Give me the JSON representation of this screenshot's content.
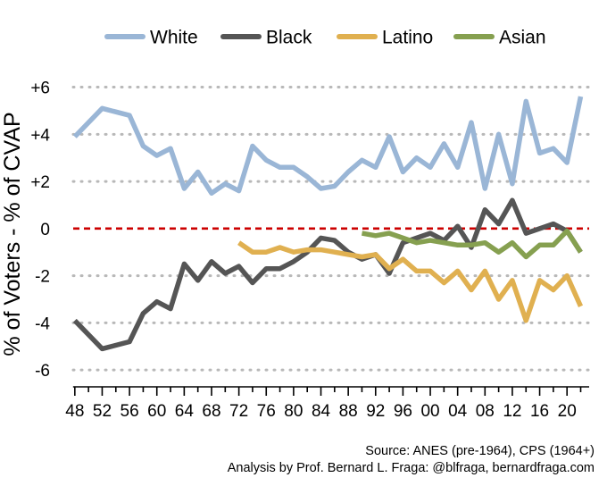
{
  "chart_data": {
    "type": "line",
    "ylabel": "% of Voters - % of CVAP",
    "ylim": [
      -6.6,
      6.4
    ],
    "yticks": [
      6,
      4,
      2,
      0,
      -2,
      -4,
      -6
    ],
    "ytick_labels": [
      "+6",
      "+4",
      "+2",
      "0",
      "-2",
      "-4",
      "-6"
    ],
    "xlim": [
      1947.5,
      2023.5
    ],
    "xticks": [
      1948,
      1952,
      1956,
      1960,
      1964,
      1968,
      1972,
      1976,
      1980,
      1984,
      1988,
      1992,
      1996,
      2000,
      2004,
      2008,
      2012,
      2016,
      2020
    ],
    "xtick_labels": [
      "48",
      "52",
      "56",
      "60",
      "64",
      "68",
      "72",
      "76",
      "80",
      "84",
      "88",
      "92",
      "96",
      "00",
      "04",
      "08",
      "12",
      "16",
      "20"
    ],
    "grid": "horizontal dotted",
    "reference_line": {
      "y": 0,
      "color": "#cc0000",
      "style": "dashed"
    },
    "legend_position": "top",
    "series": [
      {
        "name": "White",
        "color": "#9ab6d6",
        "x": [
          1948,
          1952,
          1956,
          1958,
          1960,
          1962,
          1964,
          1966,
          1968,
          1970,
          1972,
          1974,
          1976,
          1978,
          1980,
          1982,
          1984,
          1986,
          1988,
          1990,
          1992,
          1994,
          1996,
          1998,
          2000,
          2002,
          2004,
          2006,
          2008,
          2010,
          2012,
          2014,
          2016,
          2018,
          2020,
          2022
        ],
        "y": [
          3.9,
          5.1,
          4.8,
          3.5,
          3.1,
          3.4,
          1.7,
          2.4,
          1.5,
          1.9,
          1.6,
          3.5,
          2.9,
          2.6,
          2.6,
          2.2,
          1.7,
          1.8,
          2.4,
          2.9,
          2.6,
          3.9,
          2.4,
          3.0,
          2.6,
          3.6,
          2.6,
          4.5,
          1.7,
          4.0,
          1.9,
          5.4,
          3.2,
          3.4,
          2.8,
          5.6
        ]
      },
      {
        "name": "Black",
        "color": "#555555",
        "x": [
          1948,
          1952,
          1956,
          1958,
          1960,
          1962,
          1964,
          1966,
          1968,
          1970,
          1972,
          1974,
          1976,
          1978,
          1980,
          1982,
          1984,
          1986,
          1988,
          1990,
          1992,
          1994,
          1996,
          1998,
          2000,
          2002,
          2004,
          2006,
          2008,
          2010,
          2012,
          2014,
          2016,
          2018,
          2020,
          2022
        ],
        "y": [
          -3.9,
          -5.1,
          -4.8,
          -3.6,
          -3.1,
          -3.4,
          -1.5,
          -2.2,
          -1.4,
          -1.9,
          -1.6,
          -2.3,
          -1.7,
          -1.7,
          -1.4,
          -1.0,
          -0.4,
          -0.5,
          -1.0,
          -1.3,
          -1.1,
          -1.9,
          -0.6,
          -0.4,
          -0.2,
          -0.5,
          0.1,
          -0.8,
          0.8,
          0.2,
          1.2,
          -0.2,
          0.0,
          0.2,
          -0.1,
          -1.0
        ]
      },
      {
        "name": "Latino",
        "color": "#e0b050",
        "x": [
          1972,
          1974,
          1976,
          1978,
          1980,
          1982,
          1984,
          1986,
          1988,
          1990,
          1992,
          1994,
          1996,
          1998,
          2000,
          2002,
          2004,
          2006,
          2008,
          2010,
          2012,
          2014,
          2016,
          2018,
          2020,
          2022
        ],
        "y": [
          -0.6,
          -1.0,
          -1.0,
          -0.8,
          -1.0,
          -0.9,
          -0.9,
          -1.0,
          -1.1,
          -1.2,
          -1.1,
          -1.7,
          -1.3,
          -1.8,
          -1.8,
          -2.3,
          -1.8,
          -2.6,
          -1.8,
          -3.0,
          -2.2,
          -3.9,
          -2.2,
          -2.6,
          -2.0,
          -3.3
        ]
      },
      {
        "name": "Asian",
        "color": "#86a050",
        "x": [
          1990,
          1992,
          1994,
          1996,
          1998,
          2000,
          2002,
          2004,
          2006,
          2008,
          2010,
          2012,
          2014,
          2016,
          2018,
          2020,
          2022
        ],
        "y": [
          -0.2,
          -0.3,
          -0.2,
          -0.4,
          -0.6,
          -0.5,
          -0.6,
          -0.7,
          -0.7,
          -0.6,
          -1.0,
          -0.6,
          -1.2,
          -0.7,
          -0.7,
          -0.1,
          -1.0
        ]
      }
    ]
  },
  "source": {
    "line1": "Source: ANES (pre-1964), CPS (1964+)",
    "line2": "Analysis by Prof. Bernard L. Fraga: @blfraga, bernardfraga.com"
  }
}
